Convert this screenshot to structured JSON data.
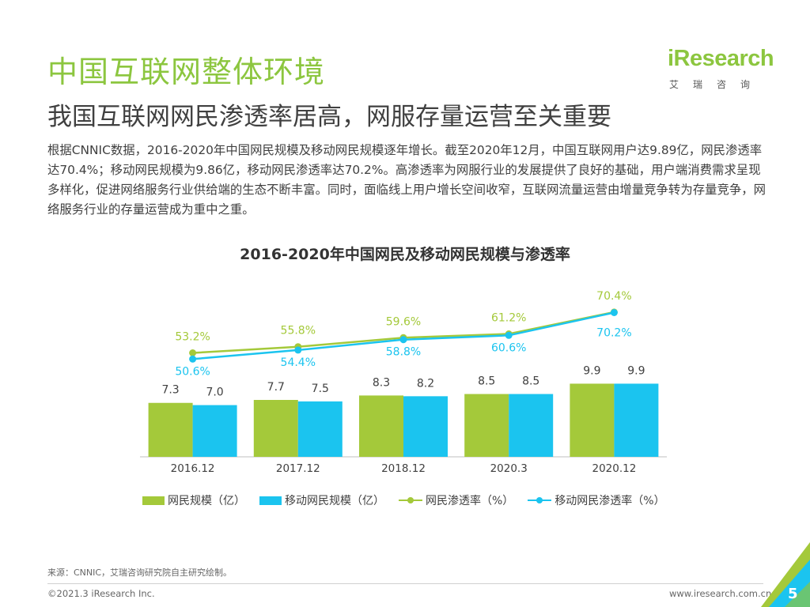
{
  "header": {
    "title": "中国互联网整体环境",
    "subtitle": "我国互联网网民渗透率居高，网服存量运营至关重要"
  },
  "logo": {
    "word": "iResearch",
    "cn": "艾瑞咨询"
  },
  "body_text": "根据CNNIC数据，2016-2020年中国网民规模及移动网民规模逐年增长。截至2020年12月，中国互联网用户达9.89亿，网民渗透率达70.4%；移动网民规模为9.86亿，移动网民渗透率达70.2%。高渗透率为网服行业的发展提供了良好的基础，用户端消费需求呈现多样化，促进网络服务行业供给端的生态不断丰富。同时，面临线上用户增长空间收窄，互联网流量运营由增量竞争转为存量竞争，网络服务行业的存量运营成为重中之重。",
  "colors": {
    "green": "#a4c93a",
    "blue": "#1bc4ef",
    "title_green": "#8cc63f"
  },
  "chart_data": {
    "type": "bar+line",
    "title": "2016-2020年中国网民及移动网民规模与渗透率",
    "categories": [
      "2016.12",
      "2017.12",
      "2018.12",
      "2020.3",
      "2020.12"
    ],
    "bar_series": [
      {
        "name": "网民规模（亿）",
        "values": [
          7.3,
          7.7,
          8.3,
          8.5,
          9.9
        ],
        "labels": [
          "7.3",
          "7.7",
          "8.3",
          "8.5",
          "9.9"
        ]
      },
      {
        "name": "移动网民规模（亿）",
        "values": [
          7.0,
          7.5,
          8.2,
          8.5,
          9.9
        ],
        "labels": [
          "7.0",
          "7.5",
          "8.2",
          "8.5",
          "9.9"
        ]
      }
    ],
    "line_series": [
      {
        "name": "网民渗透率（%）",
        "values": [
          53.2,
          55.8,
          59.6,
          61.2,
          70.4
        ],
        "labels": [
          "53.2%",
          "55.8%",
          "59.6%",
          "61.2%",
          "70.4%"
        ]
      },
      {
        "name": "移动网民渗透率（%）",
        "values": [
          50.6,
          54.4,
          58.8,
          60.6,
          70.2
        ],
        "labels": [
          "50.6%",
          "54.4%",
          "58.8%",
          "60.6%",
          "70.2%"
        ]
      }
    ],
    "legend_position": "bottom"
  },
  "footer": {
    "source": "来源：CNNIC，艾瑞咨询研究院自主研究绘制。",
    "copyright": "©2021.3 iResearch Inc.",
    "website": "www.iresearch.com.cn",
    "page": "5"
  }
}
